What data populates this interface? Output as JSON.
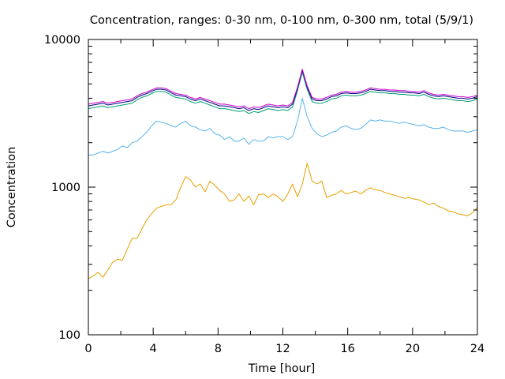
{
  "chart_data": {
    "type": "line",
    "title": "Concentration, ranges: 0-30 nm, 0-100 nm, 0-300 nm, total (5/9/1)",
    "xlabel": "Time [hour]",
    "ylabel": "Concentration",
    "xlim": [
      0,
      24
    ],
    "ylim": [
      100,
      10000
    ],
    "yscale": "log",
    "grid": false,
    "legend": "none",
    "xticks": [
      0,
      4,
      8,
      12,
      16,
      20,
      24
    ],
    "yticks": [
      100,
      1000,
      10000
    ],
    "xtick_labels": [
      "0",
      "4",
      "8",
      "12",
      "16",
      "20",
      "24"
    ],
    "ytick_labels": [
      "100",
      "1000",
      "10000"
    ],
    "series": [
      {
        "color": "#e69f00",
        "x": [
          0,
          0.3,
          0.6,
          0.9,
          1.2,
          1.5,
          1.8,
          2.1,
          2.4,
          2.7,
          3.0,
          3.3,
          3.6,
          3.9,
          4.2,
          4.5,
          4.8,
          5.1,
          5.4,
          5.7,
          6.0,
          6.3,
          6.6,
          6.9,
          7.2,
          7.5,
          7.8,
          8.1,
          8.4,
          8.7,
          9.0,
          9.3,
          9.6,
          9.9,
          10.2,
          10.5,
          10.8,
          11.1,
          11.4,
          11.7,
          12.0,
          12.3,
          12.6,
          12.9,
          13.2,
          13.5,
          13.8,
          14.1,
          14.4,
          14.7,
          15.0,
          15.3,
          15.6,
          15.9,
          16.2,
          16.5,
          16.8,
          17.1,
          17.4,
          17.7,
          18.0,
          18.3,
          18.6,
          18.9,
          19.2,
          19.5,
          19.8,
          20.1,
          20.4,
          20.7,
          21.0,
          21.3,
          21.6,
          21.9,
          22.2,
          22.5,
          22.8,
          23.1,
          23.4,
          23.7,
          24.0
        ],
        "y": [
          240,
          250,
          265,
          245,
          275,
          310,
          325,
          320,
          380,
          450,
          450,
          520,
          600,
          660,
          720,
          740,
          760,
          760,
          820,
          1000,
          1180,
          1120,
          1000,
          1050,
          930,
          1100,
          1030,
          950,
          900,
          800,
          820,
          900,
          800,
          870,
          760,
          890,
          900,
          850,
          900,
          860,
          800,
          900,
          1050,
          860,
          1050,
          1450,
          1100,
          1050,
          1100,
          850,
          880,
          900,
          950,
          900,
          920,
          940,
          900,
          950,
          990,
          960,
          950,
          920,
          900,
          880,
          860,
          840,
          850,
          830,
          820,
          790,
          760,
          780,
          740,
          720,
          690,
          680,
          660,
          650,
          640,
          670,
          730
        ]
      },
      {
        "color": "#56b4e9",
        "x": [
          0,
          0.3,
          0.6,
          0.9,
          1.2,
          1.5,
          1.8,
          2.1,
          2.4,
          2.7,
          3.0,
          3.3,
          3.6,
          3.9,
          4.2,
          4.5,
          4.8,
          5.1,
          5.4,
          5.7,
          6.0,
          6.3,
          6.6,
          6.9,
          7.2,
          7.5,
          7.8,
          8.1,
          8.4,
          8.7,
          9.0,
          9.3,
          9.6,
          9.9,
          10.2,
          10.5,
          10.8,
          11.1,
          11.4,
          11.7,
          12.0,
          12.3,
          12.6,
          12.9,
          13.2,
          13.5,
          13.8,
          14.1,
          14.4,
          14.7,
          15.0,
          15.3,
          15.6,
          15.9,
          16.2,
          16.5,
          16.8,
          17.1,
          17.4,
          17.7,
          18.0,
          18.3,
          18.6,
          18.9,
          19.2,
          19.5,
          19.8,
          20.1,
          20.4,
          20.7,
          21.0,
          21.3,
          21.6,
          21.9,
          22.2,
          22.5,
          22.8,
          23.1,
          23.4,
          23.7,
          24.0
        ],
        "y": [
          1650,
          1650,
          1700,
          1750,
          1700,
          1750,
          1800,
          1900,
          1850,
          2000,
          2050,
          2200,
          2350,
          2600,
          2800,
          2750,
          2700,
          2600,
          2550,
          2700,
          2800,
          2600,
          2550,
          2450,
          2400,
          2500,
          2300,
          2250,
          2100,
          2200,
          2050,
          2050,
          2150,
          1950,
          2100,
          2050,
          2050,
          2200,
          2150,
          2200,
          2200,
          2100,
          2200,
          2800,
          4000,
          3000,
          2500,
          2300,
          2200,
          2250,
          2350,
          2400,
          2550,
          2600,
          2500,
          2450,
          2500,
          2650,
          2850,
          2800,
          2850,
          2800,
          2800,
          2750,
          2700,
          2750,
          2700,
          2650,
          2600,
          2650,
          2550,
          2500,
          2500,
          2550,
          2450,
          2400,
          2400,
          2400,
          2350,
          2400,
          2450
        ]
      },
      {
        "color": "#009e73",
        "x": [
          0,
          0.3,
          0.6,
          0.9,
          1.2,
          1.5,
          1.8,
          2.1,
          2.4,
          2.7,
          3.0,
          3.3,
          3.6,
          3.9,
          4.2,
          4.5,
          4.8,
          5.1,
          5.4,
          5.7,
          6.0,
          6.3,
          6.6,
          6.9,
          7.2,
          7.5,
          7.8,
          8.1,
          8.4,
          8.7,
          9.0,
          9.3,
          9.6,
          9.9,
          10.2,
          10.5,
          10.8,
          11.1,
          11.4,
          11.7,
          12.0,
          12.3,
          12.6,
          12.9,
          13.2,
          13.5,
          13.8,
          14.1,
          14.4,
          14.7,
          15.0,
          15.3,
          15.6,
          15.9,
          16.2,
          16.5,
          16.8,
          17.1,
          17.4,
          17.7,
          18.0,
          18.3,
          18.6,
          18.9,
          19.2,
          19.5,
          19.8,
          20.1,
          20.4,
          20.7,
          21.0,
          21.3,
          21.6,
          21.9,
          22.2,
          22.5,
          22.8,
          23.1,
          23.4,
          23.7,
          24.0
        ],
        "y": [
          3400,
          3450,
          3500,
          3550,
          3450,
          3500,
          3550,
          3600,
          3650,
          3700,
          3900,
          4050,
          4150,
          4300,
          4450,
          4450,
          4400,
          4200,
          4050,
          4000,
          3950,
          3800,
          3700,
          3800,
          3700,
          3600,
          3500,
          3400,
          3400,
          3350,
          3300,
          3250,
          3300,
          3150,
          3250,
          3200,
          3300,
          3400,
          3350,
          3300,
          3350,
          3300,
          3500,
          4500,
          6000,
          4600,
          3800,
          3700,
          3700,
          3800,
          3950,
          4000,
          4150,
          4200,
          4150,
          4150,
          4200,
          4300,
          4450,
          4400,
          4350,
          4350,
          4300,
          4300,
          4250,
          4250,
          4200,
          4200,
          4150,
          4250,
          4100,
          4000,
          3950,
          4000,
          3950,
          3900,
          3850,
          3850,
          3800,
          3850,
          3950
        ]
      },
      {
        "color": "#000080",
        "x": [
          0,
          0.3,
          0.6,
          0.9,
          1.2,
          1.5,
          1.8,
          2.1,
          2.4,
          2.7,
          3.0,
          3.3,
          3.6,
          3.9,
          4.2,
          4.5,
          4.8,
          5.1,
          5.4,
          5.7,
          6.0,
          6.3,
          6.6,
          6.9,
          7.2,
          7.5,
          7.8,
          8.1,
          8.4,
          8.7,
          9.0,
          9.3,
          9.6,
          9.9,
          10.2,
          10.5,
          10.8,
          11.1,
          11.4,
          11.7,
          12.0,
          12.3,
          12.6,
          12.9,
          13.2,
          13.5,
          13.8,
          14.1,
          14.4,
          14.7,
          15.0,
          15.3,
          15.6,
          15.9,
          16.2,
          16.5,
          16.8,
          17.1,
          17.4,
          17.7,
          18.0,
          18.3,
          18.6,
          18.9,
          19.2,
          19.5,
          19.8,
          20.1,
          20.4,
          20.7,
          21.0,
          21.3,
          21.6,
          21.9,
          22.2,
          22.5,
          22.8,
          23.1,
          23.4,
          23.7,
          24.0
        ],
        "y": [
          3550,
          3600,
          3650,
          3700,
          3600,
          3650,
          3700,
          3750,
          3800,
          3850,
          4050,
          4200,
          4300,
          4450,
          4600,
          4600,
          4550,
          4350,
          4200,
          4150,
          4100,
          3950,
          3850,
          3950,
          3850,
          3750,
          3650,
          3550,
          3550,
          3500,
          3450,
          3400,
          3450,
          3300,
          3400,
          3350,
          3450,
          3550,
          3500,
          3450,
          3500,
          3450,
          3650,
          4650,
          6200,
          4750,
          3950,
          3850,
          3850,
          3950,
          4100,
          4150,
          4300,
          4350,
          4300,
          4300,
          4350,
          4450,
          4600,
          4550,
          4500,
          4500,
          4450,
          4450,
          4400,
          4400,
          4350,
          4350,
          4300,
          4400,
          4250,
          4150,
          4100,
          4150,
          4100,
          4050,
          4000,
          4000,
          3950,
          4000,
          4100
        ]
      },
      {
        "color": "#cc00cc",
        "x": [
          0,
          0.3,
          0.6,
          0.9,
          1.2,
          1.5,
          1.8,
          2.1,
          2.4,
          2.7,
          3.0,
          3.3,
          3.6,
          3.9,
          4.2,
          4.5,
          4.8,
          5.1,
          5.4,
          5.7,
          6.0,
          6.3,
          6.6,
          6.9,
          7.2,
          7.5,
          7.8,
          8.1,
          8.4,
          8.7,
          9.0,
          9.3,
          9.6,
          9.9,
          10.2,
          10.5,
          10.8,
          11.1,
          11.4,
          11.7,
          12.0,
          12.3,
          12.6,
          12.9,
          13.2,
          13.5,
          13.8,
          14.1,
          14.4,
          14.7,
          15.0,
          15.3,
          15.6,
          15.9,
          16.2,
          16.5,
          16.8,
          17.1,
          17.4,
          17.7,
          18.0,
          18.3,
          18.6,
          18.9,
          19.2,
          19.5,
          19.8,
          20.1,
          20.4,
          20.7,
          21.0,
          21.3,
          21.6,
          21.9,
          22.2,
          22.5,
          22.8,
          23.1,
          23.4,
          23.7,
          24.0
        ],
        "y": [
          3650,
          3700,
          3750,
          3800,
          3700,
          3750,
          3800,
          3850,
          3900,
          3950,
          4150,
          4300,
          4400,
          4550,
          4700,
          4700,
          4650,
          4450,
          4300,
          4250,
          4200,
          4050,
          3950,
          4050,
          3950,
          3850,
          3750,
          3650,
          3650,
          3600,
          3550,
          3500,
          3550,
          3400,
          3500,
          3450,
          3550,
          3650,
          3600,
          3550,
          3600,
          3550,
          3750,
          4750,
          6300,
          4850,
          4050,
          3950,
          3950,
          4050,
          4200,
          4250,
          4400,
          4450,
          4400,
          4400,
          4450,
          4550,
          4700,
          4650,
          4600,
          4600,
          4550,
          4550,
          4500,
          4500,
          4450,
          4450,
          4400,
          4500,
          4350,
          4250,
          4200,
          4250,
          4200,
          4150,
          4100,
          4100,
          4050,
          4100,
          4200
        ]
      }
    ]
  }
}
